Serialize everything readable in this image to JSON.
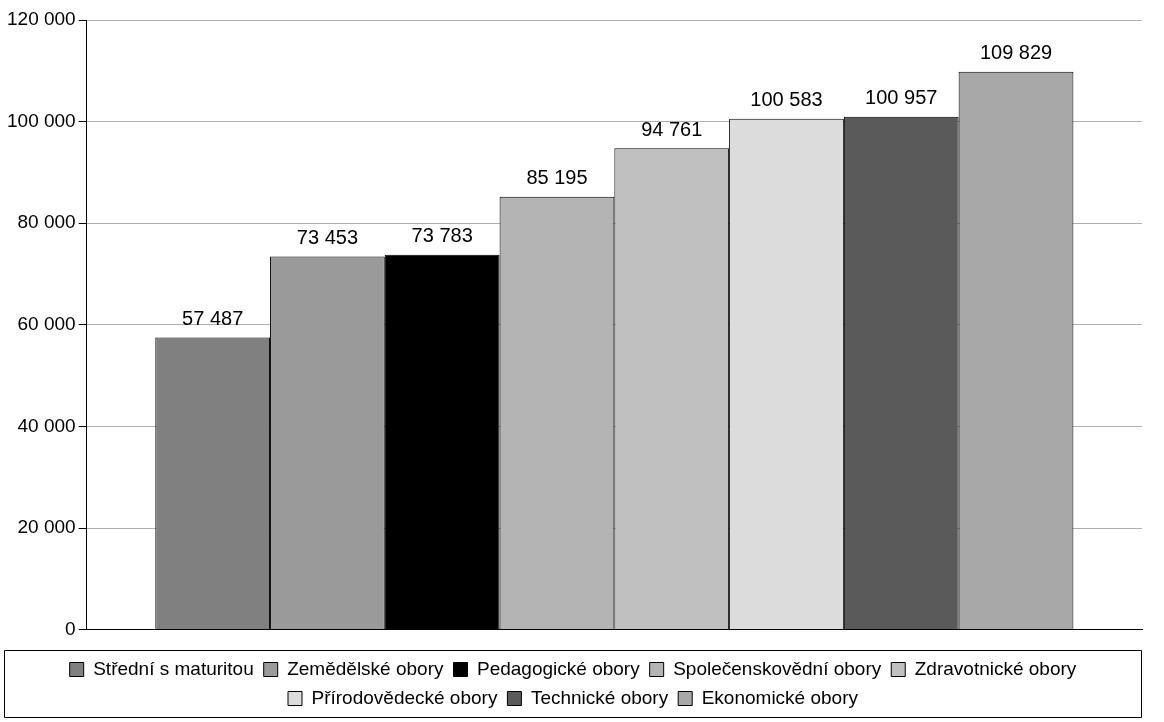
{
  "chart_data": {
    "type": "bar",
    "categories": [
      null
    ],
    "series": [
      {
        "name": "Střední s maturitou",
        "color": "#808080",
        "values": [
          57487
        ]
      },
      {
        "name": "Zemědělské obory",
        "color": "#9a9a9a",
        "values": [
          73453
        ]
      },
      {
        "name": "Pedagogické obory",
        "color": "#000000",
        "values": [
          73783
        ]
      },
      {
        "name": "Společenskovědní obory",
        "color": "#b4b4b4",
        "values": [
          85195
        ]
      },
      {
        "name": "Zdravotnické obory",
        "color": "#c0c0c0",
        "values": [
          94761
        ]
      },
      {
        "name": "Přírodovědecké obory",
        "color": "#dcdcdc",
        "values": [
          100583
        ]
      },
      {
        "name": "Technické obory",
        "color": "#5a5a5a",
        "values": [
          100957
        ]
      },
      {
        "name": "Ekonomické obory",
        "color": "#a8a8a8",
        "values": [
          109829
        ]
      }
    ],
    "ylim": [
      0,
      120000
    ],
    "yticks": [
      {
        "value": 0,
        "label": "0"
      },
      {
        "value": 20000,
        "label": "20 000"
      },
      {
        "value": 40000,
        "label": "40 000"
      },
      {
        "value": 60000,
        "label": "60 000"
      },
      {
        "value": 80000,
        "label": "80 000"
      },
      {
        "value": 100000,
        "label": "100 000"
      },
      {
        "value": 120000,
        "label": "120 000"
      }
    ],
    "grid": "y",
    "legend": "bottom",
    "data_labels": true
  }
}
